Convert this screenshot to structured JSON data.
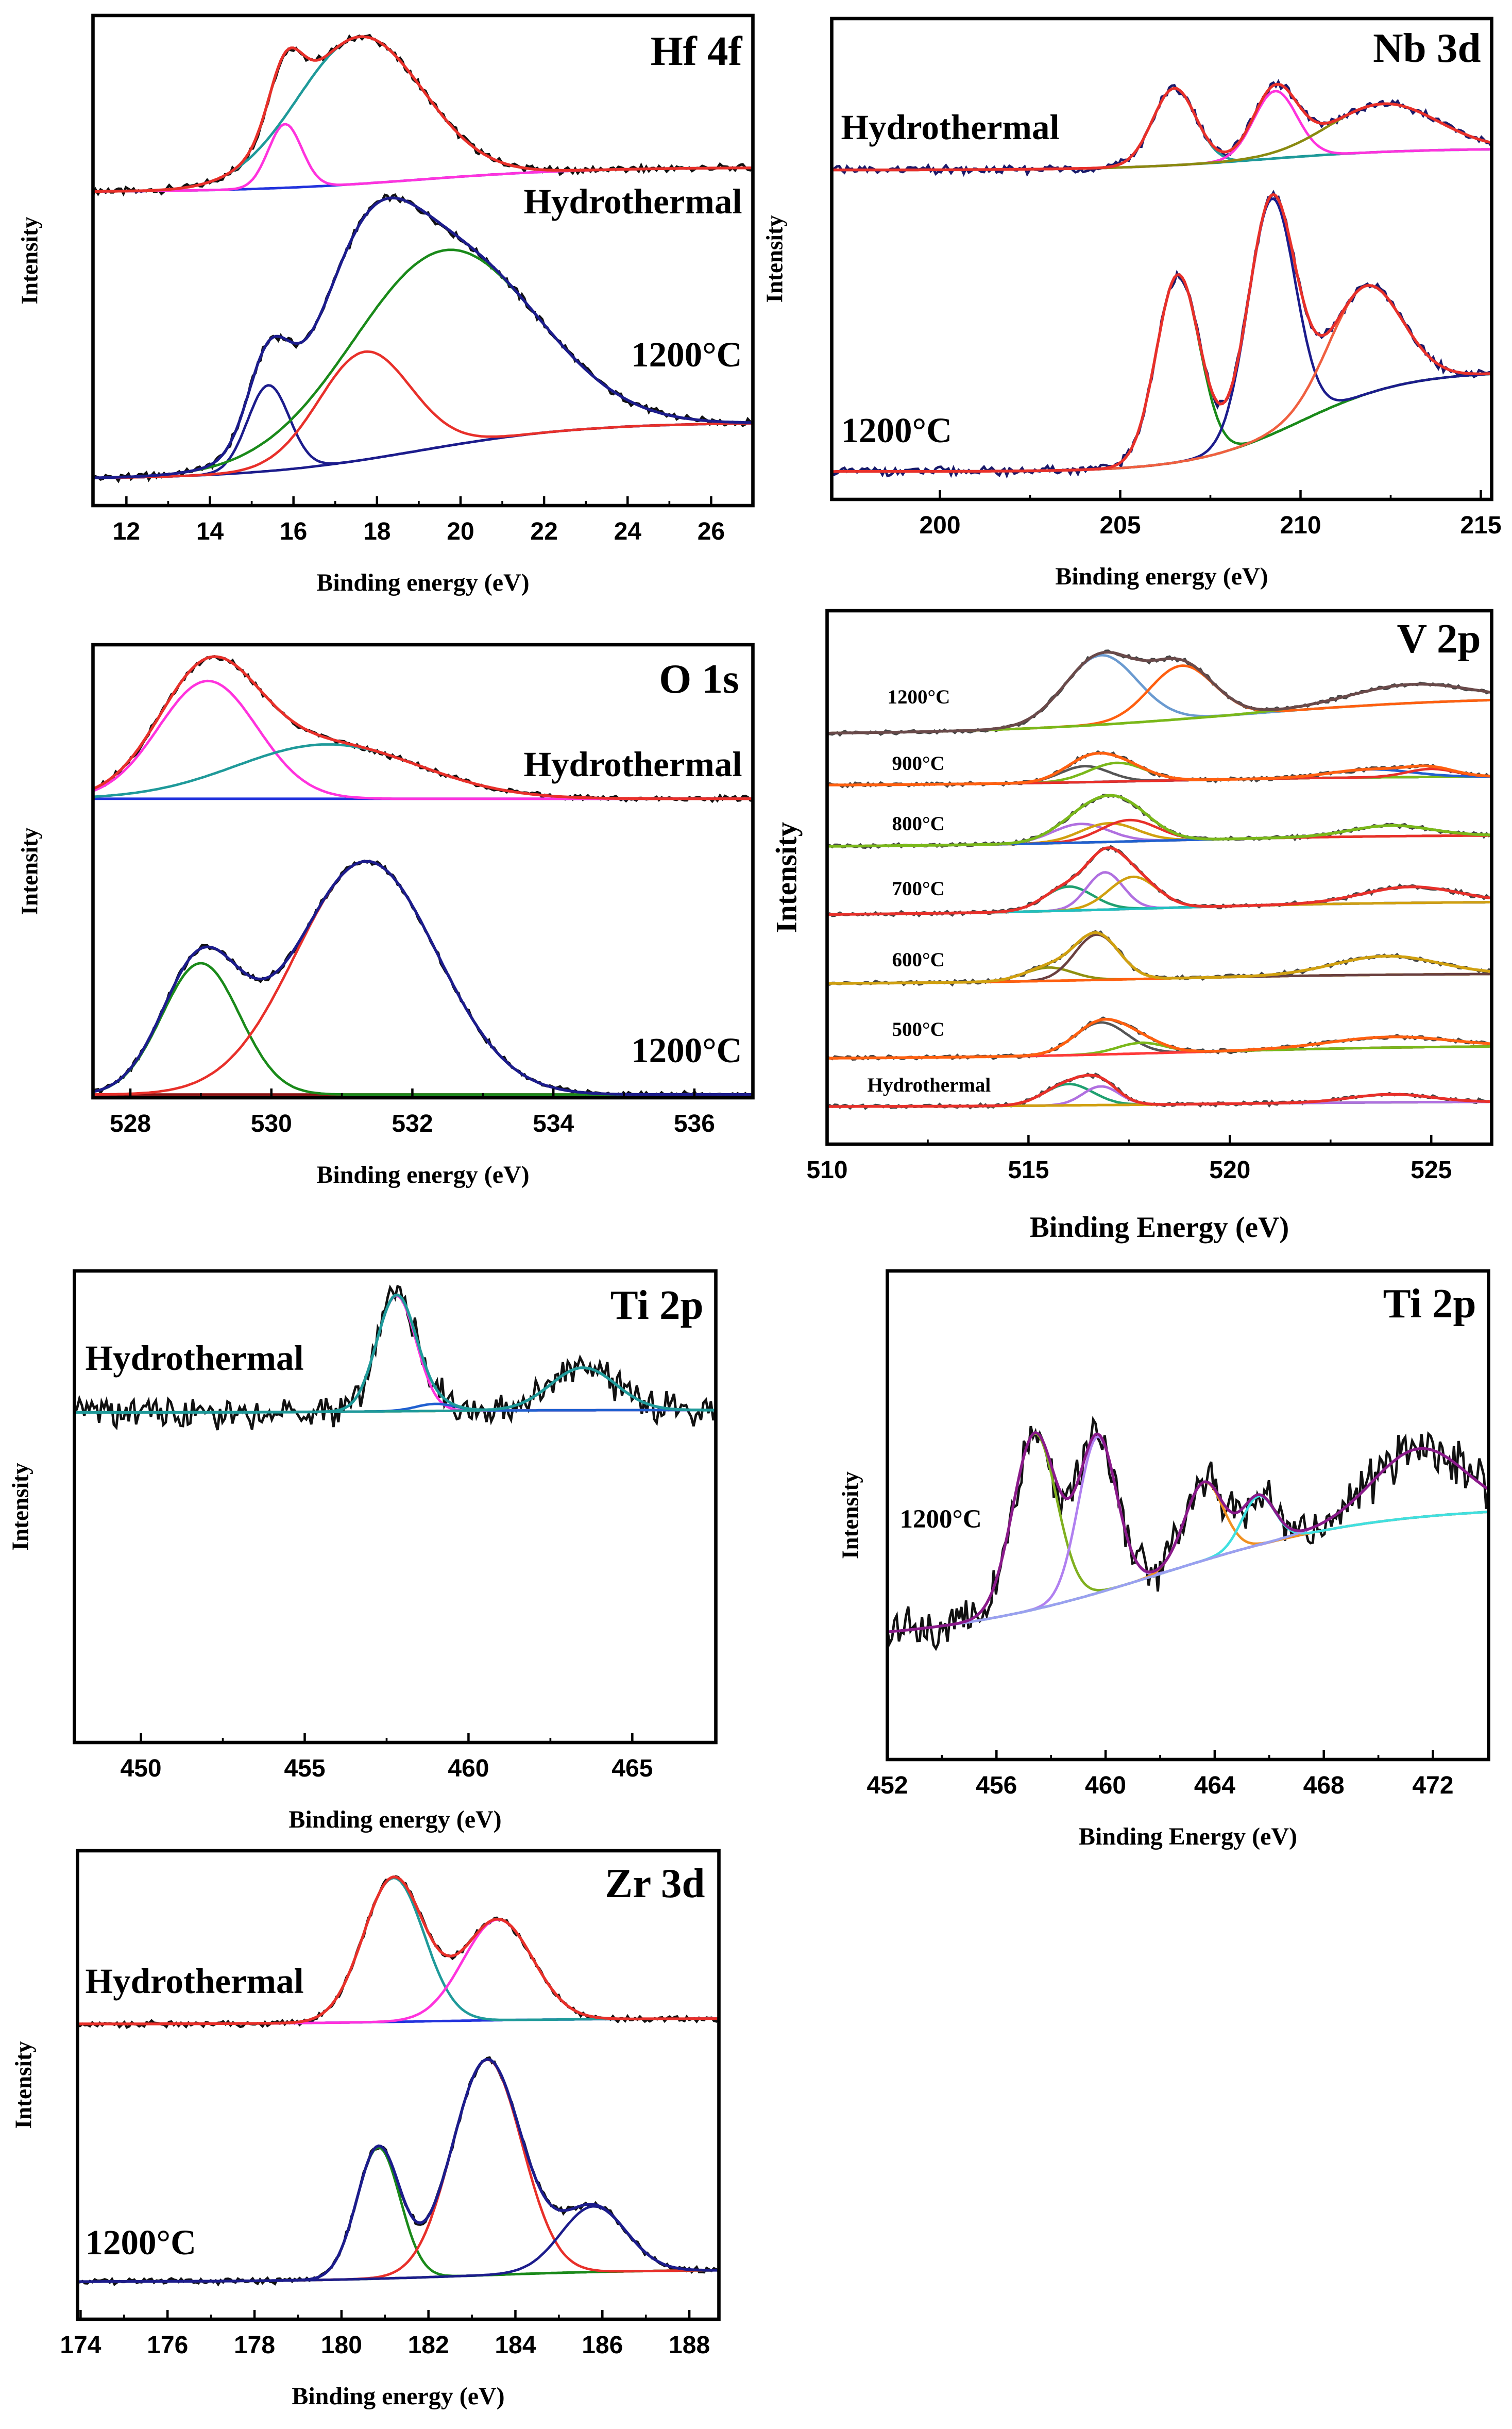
{
  "chart_data": [
    {
      "type": "line",
      "title": "Hf 4f",
      "xlabel": "Binding energy (eV)",
      "ylabel": "Intensity",
      "xlim": [
        11.2,
        27.0
      ],
      "ylim": [
        0,
        10
      ],
      "xticks": [
        12,
        14,
        16,
        18,
        20,
        22,
        24,
        26
      ],
      "raw_color": "#111111",
      "envelope_color": "#e8302a",
      "spectra": [
        {
          "label": "Hydrothermal",
          "baseline": {
            "start": 6.4,
            "end": 6.9,
            "center": 19,
            "width": 2,
            "color": "#2233dd"
          },
          "envelope_color": "#e8302a",
          "peaks": [
            {
              "center": 15.8,
              "height": 1.3,
              "width": 0.4,
              "color": "#ff33dd"
            },
            {
              "center": 17.6,
              "height": 3.0,
              "width": 1.5,
              "color": "#1f9a9a"
            }
          ]
        },
        {
          "label": "1200°C",
          "baseline": {
            "start": 0.54,
            "end": 1.7,
            "center": 19,
            "width": 2,
            "color": "#1c1c8c"
          },
          "envelope_color": "#1c1c8c",
          "peaks": [
            {
              "center": 15.4,
              "height": 1.75,
              "width": 0.5,
              "color": "#1c1c8c"
            },
            {
              "center": 17.7,
              "height": 2.2,
              "width": 1.1,
              "color": "#e8302a"
            },
            {
              "center": 19.6,
              "height": 4.0,
              "width": 2.2,
              "color": "#1a8a1a"
            }
          ]
        }
      ]
    },
    {
      "type": "line",
      "title": "Nb 3d",
      "xlabel": "Binding energy (eV)",
      "ylabel": "Intensity",
      "xlim": [
        197.0,
        215.3
      ],
      "ylim": [
        0,
        10
      ],
      "xticks": [
        200,
        205,
        210,
        215
      ],
      "raw_color": "#1a1a6a",
      "envelope_color": "#e8302a",
      "spectra": [
        {
          "label": "Hydrothermal",
          "baseline": {
            "start": 6.85,
            "end": 7.3,
            "center": 209,
            "width": 2,
            "color": "#1f9a9a"
          },
          "envelope_color": "#e8302a",
          "peaks": [
            {
              "center": 206.5,
              "height": 1.6,
              "width": 0.6,
              "color": "#1f9a9a"
            },
            {
              "center": 209.3,
              "height": 1.4,
              "width": 0.6,
              "color": "#ff33dd"
            },
            {
              "center": 212.3,
              "height": 1.0,
              "width": 1.5,
              "color": "#8a8a10"
            }
          ]
        },
        {
          "label": "1200°C",
          "baseline": {
            "start": 0.58,
            "end": 2.67,
            "center": 210,
            "width": 1.5,
            "color": "#1a8a1a"
          },
          "envelope_color": "#e8302a",
          "peaks": [
            {
              "center": 206.6,
              "height": 3.9,
              "width": 0.6,
              "color": "#1a8a1a"
            },
            {
              "center": 209.2,
              "height": 4.9,
              "width": 0.65,
              "color": "#1c1c8c"
            },
            {
              "center": 211.8,
              "height": 2.25,
              "width": 1.0,
              "color": "#f06040"
            }
          ]
        }
      ]
    },
    {
      "type": "line",
      "title": "O 1s",
      "xlabel": "Binding energy (eV)",
      "ylabel": "Intensity",
      "xlim": [
        527.47,
        536.83
      ],
      "ylim": [
        0,
        10
      ],
      "xticks": [
        528,
        530,
        532,
        534,
        536
      ],
      "raw_color": "#111111",
      "envelope_color": "#e8302a",
      "spectra": [
        {
          "label": "Hydrothermal",
          "baseline": {
            "start": 6.6,
            "end": 6.6,
            "center": 531,
            "width": 1,
            "color": "#2233dd"
          },
          "envelope_color": "#e8302a",
          "peaks": [
            {
              "center": 529.1,
              "height": 2.6,
              "width": 0.7,
              "color": "#ff33dd"
            },
            {
              "center": 530.8,
              "height": 1.2,
              "width": 1.3,
              "color": "#1f9a9a"
            }
          ]
        },
        {
          "label": "1200°C",
          "baseline": {
            "start": 0.07,
            "end": 0.07,
            "center": 531,
            "width": 1,
            "color": "#8a1010"
          },
          "envelope_color": "#1c1c8c",
          "peaks": [
            {
              "center": 529.0,
              "height": 2.9,
              "width": 0.55,
              "color": "#1a8a1a"
            },
            {
              "center": 531.35,
              "height": 5.15,
              "width": 1.0,
              "color": "#e8302a"
            }
          ]
        }
      ]
    },
    {
      "type": "line",
      "title": "V 2p",
      "xlabel": "Binding Energy (eV)",
      "ylabel": "Intensity",
      "xlim": [
        510.0,
        526.5
      ],
      "ylim": [
        0,
        10
      ],
      "xticks": [
        510,
        515,
        520,
        525
      ],
      "raw_color": "#444444",
      "envelope_color": "#e8302a",
      "spectra": [
        {
          "label": "1200°C",
          "baseline": {
            "start": 7.68,
            "end": 8.4,
            "center": 520,
            "width": 3,
            "color": "#7ab81a"
          },
          "envelope_color": "#6a4a4a",
          "peaks": [
            {
              "center": 516.8,
              "height": 1.3,
              "width": 0.9,
              "color": "#6a9ad0"
            },
            {
              "center": 518.8,
              "height": 1.0,
              "width": 0.8,
              "color": "#ff6010"
            },
            {
              "center": 524.5,
              "height": 0.35,
              "width": 1.5,
              "color": "#7ab81a"
            }
          ]
        },
        {
          "label": "900°C",
          "baseline": {
            "start": 6.72,
            "end": 6.9,
            "center": 518,
            "width": 3,
            "color": "#20a060"
          },
          "envelope_color": "#ff6010",
          "peaks": [
            {
              "center": 516.4,
              "height": 0.3,
              "width": 0.6,
              "color": "#555555"
            },
            {
              "center": 517.2,
              "height": 0.35,
              "width": 0.7,
              "color": "#7ab81a"
            },
            {
              "center": 523.5,
              "height": 0.15,
              "width": 1.0,
              "color": "#2060d0"
            },
            {
              "center": 525.0,
              "height": 0.15,
              "width": 0.6,
              "color": "#e8302a"
            }
          ]
        },
        {
          "label": "800°C",
          "baseline": {
            "start": 5.57,
            "end": 5.8,
            "center": 518,
            "width": 3,
            "color": "#d0a010"
          },
          "envelope_color": "#7ab81a",
          "peaks": [
            {
              "center": 516.3,
              "height": 0.35,
              "width": 0.7,
              "color": "#b070e0"
            },
            {
              "center": 517.0,
              "height": 0.35,
              "width": 0.7,
              "color": "#d0a010"
            },
            {
              "center": 517.5,
              "height": 0.4,
              "width": 0.7,
              "color": "#e8302a"
            },
            {
              "center": 524.0,
              "height": 0.2,
              "width": 1.0,
              "color": "#2060d0"
            }
          ]
        },
        {
          "label": "700°C",
          "baseline": {
            "start": 4.29,
            "end": 4.55,
            "center": 518,
            "width": 3,
            "color": "#6a4040"
          },
          "envelope_color": "#e8302a",
          "peaks": [
            {
              "center": 516.0,
              "height": 0.45,
              "width": 0.6,
              "color": "#20a070"
            },
            {
              "center": 516.9,
              "height": 0.7,
              "width": 0.45,
              "color": "#b070e0"
            },
            {
              "center": 517.6,
              "height": 0.6,
              "width": 0.6,
              "color": "#d0a010"
            },
            {
              "center": 524.5,
              "height": 0.3,
              "width": 1.2,
              "color": "#20c0c0"
            }
          ]
        },
        {
          "label": "600°C",
          "baseline": {
            "start": 3.0,
            "end": 3.2,
            "center": 518,
            "width": 3,
            "color": "#ff6010"
          },
          "envelope_color": "#d0a010",
          "peaks": [
            {
              "center": 515.5,
              "height": 0.25,
              "width": 0.6,
              "color": "#909010"
            },
            {
              "center": 516.7,
              "height": 0.85,
              "width": 0.55,
              "color": "#6a4040"
            },
            {
              "center": 523.9,
              "height": 0.35,
              "width": 1.3,
              "color": "#ff6010"
            }
          ]
        },
        {
          "label": "500°C",
          "baseline": {
            "start": 1.6,
            "end": 1.85,
            "center": 519,
            "width": 3,
            "color": "#ff3a3a"
          },
          "envelope_color": "#ff6010",
          "peaks": [
            {
              "center": 516.8,
              "height": 0.6,
              "width": 0.65,
              "color": "#555555"
            },
            {
              "center": 517.8,
              "height": 0.2,
              "width": 0.6,
              "color": "#7ab81a"
            },
            {
              "center": 524.0,
              "height": 0.2,
              "width": 1.5,
              "color": "#ff3a3a"
            }
          ]
        },
        {
          "label": "Hydrothermal",
          "baseline": {
            "start": 0.7,
            "end": 0.8,
            "center": 519,
            "width": 3,
            "color": "#d0a010"
          },
          "envelope_color": "#e8302a",
          "peaks": [
            {
              "center": 516.0,
              "height": 0.4,
              "width": 0.6,
              "color": "#20a070"
            },
            {
              "center": 516.8,
              "height": 0.35,
              "width": 0.45,
              "color": "#b070e0"
            },
            {
              "center": 524.0,
              "height": 0.15,
              "width": 1.0,
              "color": "#d0a010"
            }
          ]
        }
      ]
    },
    {
      "type": "line",
      "title": "Ti 2p",
      "xlabel": "Binding energy (eV)",
      "ylabel": "Intensity",
      "xlim": [
        447.97,
        467.55
      ],
      "ylim": [
        0,
        10
      ],
      "xticks": [
        450,
        455,
        460,
        465
      ],
      "raw_color": "#111111",
      "envelope_color": "#1f9a9a",
      "spectra": [
        {
          "label": "Hydrothermal",
          "baseline": {
            "start": 7.0,
            "end": 7.05,
            "center": 458,
            "width": 2,
            "color": "#a0a020"
          },
          "envelope_color": "#1f9a9a",
          "peaks": [
            {
              "center": 457.8,
              "height": 2.45,
              "width": 0.6,
              "color": "#ff33dd"
            },
            {
              "center": 459.0,
              "height": 0.15,
              "width": 0.6,
              "color": "#2060d0"
            },
            {
              "center": 463.5,
              "height": 0.9,
              "width": 1.0,
              "color": "#1f9a9a"
            }
          ]
        }
      ]
    },
    {
      "type": "line",
      "title": "Ti 2p",
      "xlabel": "Binding Energy (eV)",
      "ylabel": "Intensity",
      "xlim": [
        452.0,
        474.04
      ],
      "ylim": [
        0,
        10
      ],
      "xticks": [
        452,
        456,
        460,
        464,
        468,
        472
      ],
      "raw_color": "#111111",
      "envelope_color": "#8a1a8a",
      "spectra": [
        {
          "label": "1200°C",
          "baseline": {
            "start": 2.4,
            "end": 5.2,
            "center": 462,
            "width": 4,
            "color": "#9aa0f0"
          },
          "envelope_color": "#8a1a8a",
          "peaks": [
            {
              "center": 457.4,
              "height": 3.6,
              "width": 0.8,
              "color": "#80b020"
            },
            {
              "center": 459.7,
              "height": 3.2,
              "width": 0.7,
              "color": "#b080f0"
            },
            {
              "center": 463.6,
              "height": 1.6,
              "width": 0.7,
              "color": "#f09020"
            },
            {
              "center": 465.6,
              "height": 1.0,
              "width": 0.6,
              "color": "#40e0e0"
            },
            {
              "center": 471.5,
              "height": 1.4,
              "width": 1.7,
              "color": "#9aa0f0"
            }
          ]
        }
      ]
    },
    {
      "type": "line",
      "title": "Zr 3d",
      "xlabel": "Binding energy (eV)",
      "ylabel": "Intensity",
      "xlim": [
        173.93,
        188.68
      ],
      "ylim": [
        0,
        10
      ],
      "xticks": [
        174,
        176,
        178,
        180,
        182,
        184,
        186,
        188
      ],
      "raw_color": "#111111",
      "envelope_color": "#e8302a",
      "spectra": [
        {
          "label": "Hydrothermal",
          "baseline": {
            "start": 6.3,
            "end": 6.42,
            "center": 182,
            "width": 2,
            "color": "#2233dd"
          },
          "envelope_color": "#e8302a",
          "peaks": [
            {
              "center": 181.2,
              "height": 3.07,
              "width": 0.7,
              "color": "#1f9a9a"
            },
            {
              "center": 183.6,
              "height": 2.15,
              "width": 0.8,
              "color": "#ff33dd"
            }
          ]
        },
        {
          "label": "1200°C",
          "baseline": {
            "start": 0.8,
            "end": 1.06,
            "center": 183,
            "width": 2,
            "color": "#1a8a1a"
          },
          "envelope_color": "#1c1c8c",
          "peaks": [
            {
              "center": 180.85,
              "height": 2.8,
              "width": 0.5,
              "color": "#1a8a1a"
            },
            {
              "center": 183.35,
              "height": 4.6,
              "width": 0.8,
              "color": "#e8302a"
            },
            {
              "center": 185.8,
              "height": 1.4,
              "width": 0.75,
              "color": "#1c1c8c"
            }
          ]
        }
      ]
    }
  ]
}
